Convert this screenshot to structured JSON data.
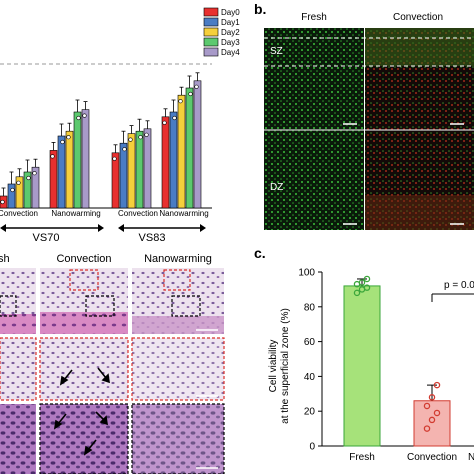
{
  "panel_a": {
    "legend": [
      "Day0",
      "Day1",
      "Day2",
      "Day3",
      "Day4"
    ],
    "colors": [
      "#e8302f",
      "#4a7cc4",
      "#f5cf3b",
      "#5cc96e",
      "#a89ac9"
    ],
    "group_labels": [
      "Convection",
      "Nanowarming",
      "Convection",
      "Nanowarming"
    ],
    "series_labels": [
      "VS70",
      "VS83"
    ],
    "bars": [
      [
        10,
        20,
        26,
        30,
        34
      ],
      [
        48,
        60,
        64,
        80,
        82
      ],
      [
        46,
        54,
        62,
        64,
        66
      ],
      [
        76,
        80,
        94,
        100,
        106
      ]
    ]
  },
  "panel_b": {
    "letter": "b.",
    "columns": [
      "Fresh",
      "Convection"
    ],
    "zones": [
      "SZ",
      "DZ"
    ]
  },
  "panel_mid": {
    "columns": [
      "sh",
      "Convection",
      "Nanowarming"
    ]
  },
  "panel_c": {
    "letter": "c.",
    "ylabel_line1": "Cell viability",
    "ylabel_line2": "at the superficial zone (%)",
    "p_value": "p = 0.0",
    "trailing": "N",
    "chart_data": {
      "type": "bar",
      "categories": [
        "Fresh",
        "Convection"
      ],
      "values": [
        92,
        26
      ],
      "errors": [
        4,
        9
      ],
      "ylim": [
        0,
        100
      ],
      "yticks": [
        0,
        20,
        40,
        60,
        80,
        100
      ],
      "points": [
        [
          88,
          90,
          91,
          93,
          94,
          96
        ],
        [
          10,
          15,
          19,
          23,
          28,
          35
        ]
      ],
      "colors": [
        "#a6e27a",
        "#f4b4b0"
      ],
      "point_colors": [
        "#3aa63a",
        "#d23b30"
      ]
    }
  }
}
